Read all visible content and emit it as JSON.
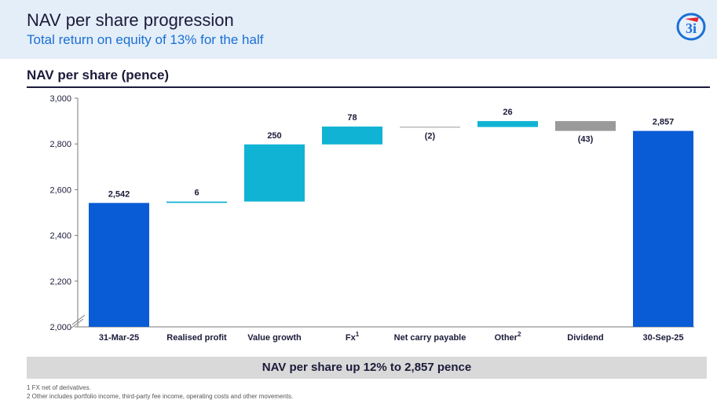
{
  "header": {
    "title": "NAV per share progression",
    "subtitle": "Total return on equity of 13% for the half"
  },
  "logo": {
    "icon": "3i-logo-icon",
    "text": "3i",
    "color": "#1a6fd6"
  },
  "panel": {
    "title": "NAV per share (pence)"
  },
  "chart_data": {
    "type": "bar",
    "subtype": "waterfall",
    "categories": [
      "31-Mar-25",
      "Realised profit",
      "Value growth",
      "Fx",
      "Net carry payable",
      "Other",
      "Dividend",
      "30-Sep-25"
    ],
    "category_superscripts": [
      "",
      "",
      "",
      "1",
      "",
      "2",
      "",
      ""
    ],
    "values": [
      2542,
      6,
      250,
      78,
      -2,
      26,
      -43,
      2857
    ],
    "data_labels": [
      "2,542",
      "6",
      "250",
      "78",
      "(2)",
      "26",
      "(43)",
      "2,857"
    ],
    "kinds": [
      "total",
      "delta",
      "delta",
      "delta",
      "delta",
      "delta",
      "delta",
      "total"
    ],
    "ylim": [
      2000,
      3000
    ],
    "yticks": [
      2000,
      2200,
      2400,
      2600,
      2800,
      3000
    ],
    "ytick_labels": [
      "2,000",
      "2,200",
      "2,400",
      "2,600",
      "2,800",
      "3,000"
    ],
    "axis_break": true,
    "colors": {
      "total": "#0a5cd6",
      "positive": "#10b3d3",
      "negative": "#9a9a9a",
      "carry": "#bbbbbb"
    },
    "title": "",
    "xlabel": "",
    "ylabel": ""
  },
  "summary": {
    "text": "NAV per share up 12% to 2,857 pence"
  },
  "footnotes": [
    "1 FX net of derivatives.",
    "2 Other includes portfolio income, third-party fee income, operating costs and other movements."
  ]
}
